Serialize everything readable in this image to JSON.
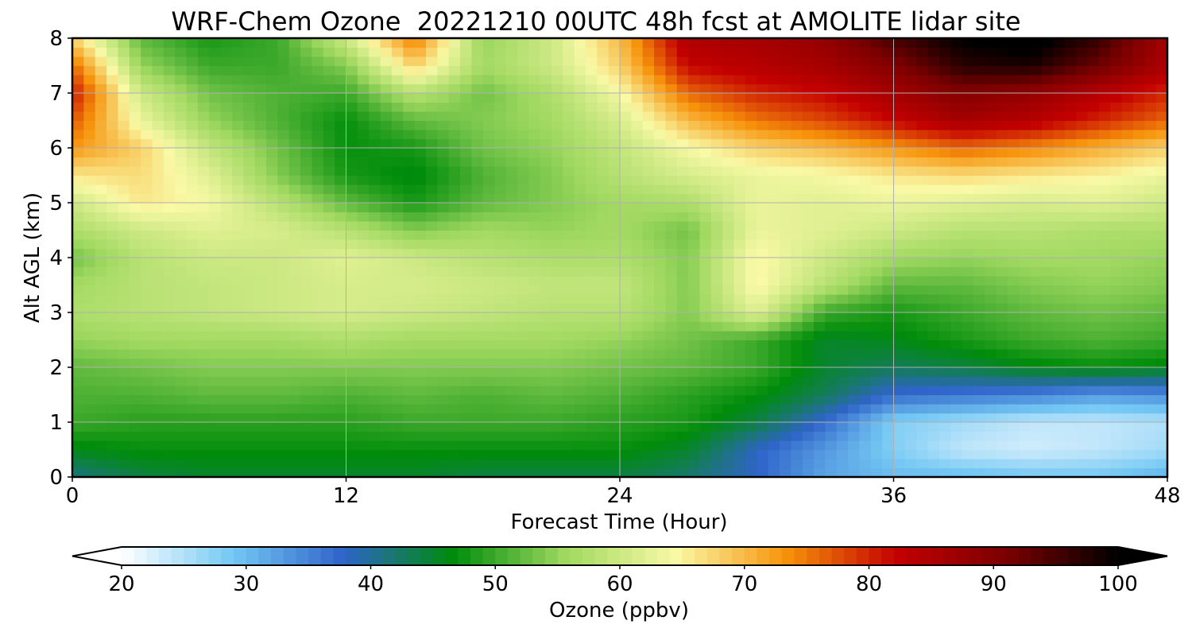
{
  "chart_data": {
    "type": "heatmap",
    "title": "WRF-Chem Ozone  20221210 00UTC 48h fcst at AMOLITE lidar site",
    "xlabel": "Forecast Time (Hour)",
    "ylabel": "Alt AGL (km)",
    "xlim": [
      0,
      48
    ],
    "ylim": [
      0,
      8
    ],
    "xticks": [
      0,
      12,
      24,
      36,
      48
    ],
    "yticks": [
      0,
      1,
      2,
      3,
      4,
      5,
      6,
      7,
      8
    ],
    "grid": true,
    "x": [
      0,
      3,
      6,
      9,
      12,
      15,
      18,
      21,
      24,
      27,
      30,
      33,
      36,
      39,
      42,
      45,
      48
    ],
    "y": [
      0,
      0.5,
      1,
      1.5,
      2,
      2.5,
      3,
      3.5,
      4,
      4.5,
      5,
      5.5,
      6,
      6.5,
      7,
      7.5,
      8
    ],
    "z": [
      [
        41,
        44,
        45,
        45,
        45,
        45,
        44,
        44,
        44,
        42,
        38,
        32,
        30,
        30,
        29,
        29,
        31
      ],
      [
        46,
        47,
        47,
        47,
        47,
        47,
        47,
        47,
        47,
        45,
        38,
        33,
        28,
        24,
        23,
        24,
        26
      ],
      [
        50,
        49,
        49,
        49,
        49,
        50,
        50,
        50,
        49,
        48,
        44,
        37,
        28,
        26,
        24,
        24,
        25
      ],
      [
        51,
        51,
        52,
        52,
        51,
        52,
        51,
        52,
        51,
        49,
        47,
        43,
        37,
        36,
        35,
        33,
        34
      ],
      [
        52,
        53,
        54,
        54,
        54,
        54,
        54,
        54,
        53,
        52,
        50,
        45,
        43,
        44,
        46,
        47,
        46
      ],
      [
        55,
        56,
        56,
        56,
        57,
        56,
        56,
        56,
        55,
        53,
        50,
        45,
        46,
        48,
        50,
        51,
        50
      ],
      [
        57,
        58,
        59,
        60,
        61,
        60,
        59,
        58,
        58,
        54,
        62,
        50,
        48,
        50,
        52,
        53,
        52
      ],
      [
        56,
        58,
        59,
        60,
        61,
        61,
        60,
        59,
        59,
        54,
        65,
        58,
        52,
        52,
        54,
        55,
        54
      ],
      [
        53,
        58,
        60,
        60,
        62,
        60,
        58,
        57,
        57,
        54,
        65,
        60,
        56,
        55,
        56,
        56,
        55
      ],
      [
        57,
        60,
        62,
        61,
        58,
        54,
        56,
        55,
        56,
        53,
        63,
        62,
        60,
        58,
        58,
        57,
        57
      ],
      [
        60,
        66,
        64,
        58,
        52,
        48,
        52,
        54,
        56,
        57,
        63,
        62,
        63,
        62,
        61,
        62,
        60
      ],
      [
        66,
        67,
        62,
        54,
        48,
        46,
        51,
        54,
        58,
        61,
        63,
        64,
        66,
        67,
        66,
        65,
        63
      ],
      [
        73,
        68,
        59,
        53,
        47,
        48,
        53,
        55,
        59,
        64,
        68,
        70,
        73,
        76,
        74,
        71,
        68
      ],
      [
        77,
        63,
        55,
        51,
        47,
        52,
        54,
        56,
        61,
        70,
        75,
        78,
        82,
        86,
        84,
        80,
        76
      ],
      [
        81,
        60,
        53,
        51,
        50,
        58,
        53,
        57,
        64,
        76,
        80,
        82,
        86,
        90,
        88,
        84,
        80
      ],
      [
        76,
        55,
        50,
        50,
        54,
        68,
        56,
        60,
        68,
        82,
        84,
        86,
        90,
        97,
        98,
        92,
        85
      ],
      [
        68,
        52,
        48,
        50,
        60,
        75,
        55,
        60,
        70,
        85,
        86,
        88,
        95,
        100,
        102,
        96,
        86
      ]
    ],
    "colorbar": {
      "label": "Ozone  (ppbv)",
      "min": 20,
      "max": 100,
      "ticks": [
        20,
        30,
        40,
        50,
        60,
        70,
        80,
        90,
        100
      ],
      "extend": "both",
      "colors": [
        "#ffffff",
        "#74c8f4",
        "#2f64c9",
        "#008c0a",
        "#9fd860",
        "#f9f9a6",
        "#f7930b",
        "#c40000",
        "#7a0000",
        "#000000"
      ]
    }
  }
}
